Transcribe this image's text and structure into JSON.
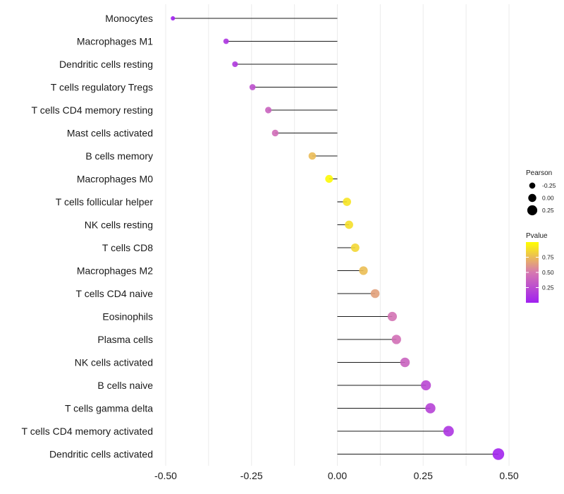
{
  "chart_data": {
    "type": "lollipop",
    "title": "",
    "xlabel": "",
    "ylabel": "",
    "xlim": [
      -0.52,
      0.52
    ],
    "xticks": [
      -0.5,
      -0.25,
      0,
      0.25,
      0.5
    ],
    "xtick_labels": [
      "-0.50",
      "-0.25",
      "0.00",
      "0.25",
      "0.50"
    ],
    "grid": true,
    "categories": [
      "Monocytes",
      "Macrophages M1",
      "Dendritic cells resting",
      "T cells regulatory  Tregs ",
      "T cells CD4 memory resting",
      "Mast cells activated",
      "B cells memory",
      "Macrophages M0",
      "T cells follicular helper",
      "NK cells resting",
      "T cells CD8",
      "Macrophages M2",
      "T cells CD4 naive",
      "Eosinophils",
      "Plasma cells",
      "NK cells activated",
      "B cells naive",
      "T cells gamma delta",
      "T cells CD4 memory activated",
      "Dendritic cells activated"
    ],
    "pearson": [
      -0.479,
      -0.324,
      -0.298,
      -0.247,
      -0.201,
      -0.181,
      -0.073,
      -0.024,
      0.028,
      0.034,
      0.052,
      0.076,
      0.11,
      0.16,
      0.172,
      0.197,
      0.258,
      0.271,
      0.324,
      0.469
    ],
    "pvalue": [
      0.0,
      0.12,
      0.14,
      0.27,
      0.38,
      0.44,
      0.75,
      0.98,
      0.9,
      0.88,
      0.85,
      0.76,
      0.65,
      0.47,
      0.45,
      0.38,
      0.23,
      0.2,
      0.12,
      0.02
    ],
    "legend": {
      "position": "right",
      "size_title": "Pearson",
      "size_breaks": [
        -0.25,
        0.0,
        0.25
      ],
      "size_labels": [
        "-0.25",
        "0.00",
        "0.25"
      ],
      "color_title": "Pvalue",
      "color_breaks": [
        0.75,
        0.5,
        0.25
      ],
      "color_labels": [
        "0.75",
        "0.50",
        "0.25"
      ],
      "color_low": "#a020f0",
      "color_mid": "#d678b0",
      "color_high": "#ffff00"
    }
  }
}
